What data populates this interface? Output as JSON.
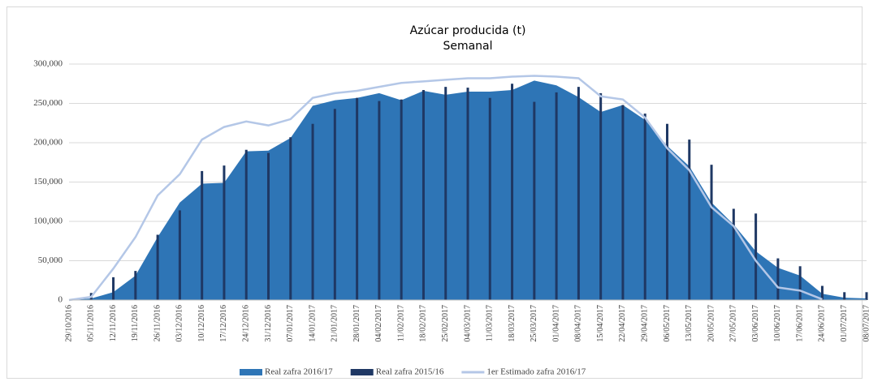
{
  "chart_data": {
    "type": "combo",
    "title": "Azúcar producida (t)",
    "subtitle": "Semanal",
    "categories": [
      "29/10/2016",
      "05/11/2016",
      "12/11/2016",
      "19/11/2016",
      "26/11/2016",
      "03/12/2016",
      "10/12/2016",
      "17/12/2016",
      "24/12/2016",
      "31/12/2016",
      "07/01/2017",
      "14/01/2017",
      "21/01/2017",
      "28/01/2017",
      "04/02/2017",
      "11/02/2017",
      "18/02/2017",
      "25/02/2017",
      "04/03/2017",
      "11/03/2017",
      "18/03/2017",
      "25/03/2017",
      "01/04/2017",
      "08/04/2017",
      "15/04/2017",
      "22/04/2017",
      "29/04/2017",
      "06/05/2017",
      "13/05/2017",
      "20/05/2017",
      "27/05/2017",
      "03/06/2017",
      "10/06/2017",
      "17/06/2017",
      "24/06/2017",
      "01/07/2017",
      "08/07/2017"
    ],
    "series": [
      {
        "name": "Real zafra 2016/17",
        "kind": "area",
        "color": "#2e75b6",
        "values": [
          0,
          2000,
          10000,
          31000,
          80000,
          124000,
          148000,
          149000,
          189000,
          190000,
          206000,
          247000,
          254000,
          257000,
          263000,
          254000,
          266000,
          261000,
          265000,
          265000,
          267000,
          279000,
          273000,
          258000,
          239000,
          248000,
          229000,
          196000,
          170000,
          124000,
          96000,
          62000,
          41000,
          31000,
          8000,
          3000,
          2000
        ]
      },
      {
        "name": "Real zafra 2015/16",
        "kind": "bar",
        "color": "#1f3864",
        "values": [
          null,
          9000,
          29000,
          37000,
          83000,
          114000,
          164000,
          171000,
          191000,
          187000,
          207000,
          224000,
          243000,
          257000,
          253000,
          255000,
          267000,
          271000,
          270000,
          257000,
          275000,
          252000,
          264000,
          271000,
          263000,
          248000,
          237000,
          224000,
          204000,
          172000,
          116000,
          110000,
          53000,
          43000,
          18000,
          10000,
          10000
        ]
      },
      {
        "name": "1er Estimado zafra 2016/17",
        "kind": "line",
        "color": "#b4c7e7",
        "values": [
          0,
          4000,
          40000,
          80000,
          133000,
          160000,
          204000,
          220000,
          227000,
          222000,
          230000,
          257000,
          263000,
          266000,
          271000,
          276000,
          278000,
          280000,
          282000,
          282000,
          284000,
          285000,
          284000,
          282000,
          259000,
          255000,
          232000,
          193000,
          165000,
          118000,
          94000,
          50000,
          16000,
          12000,
          1000,
          null,
          null
        ]
      }
    ],
    "ylim": [
      0,
      300000
    ],
    "yticks": [
      {
        "value": 0,
        "label": "0"
      },
      {
        "value": 50000,
        "label": "50,000"
      },
      {
        "value": 100000,
        "label": "100,000"
      },
      {
        "value": 150000,
        "label": "150,000"
      },
      {
        "value": 200000,
        "label": "200,000"
      },
      {
        "value": 250000,
        "label": "250,000"
      },
      {
        "value": 300000,
        "label": "300,000"
      }
    ],
    "grid": true,
    "legend": "bottom"
  }
}
